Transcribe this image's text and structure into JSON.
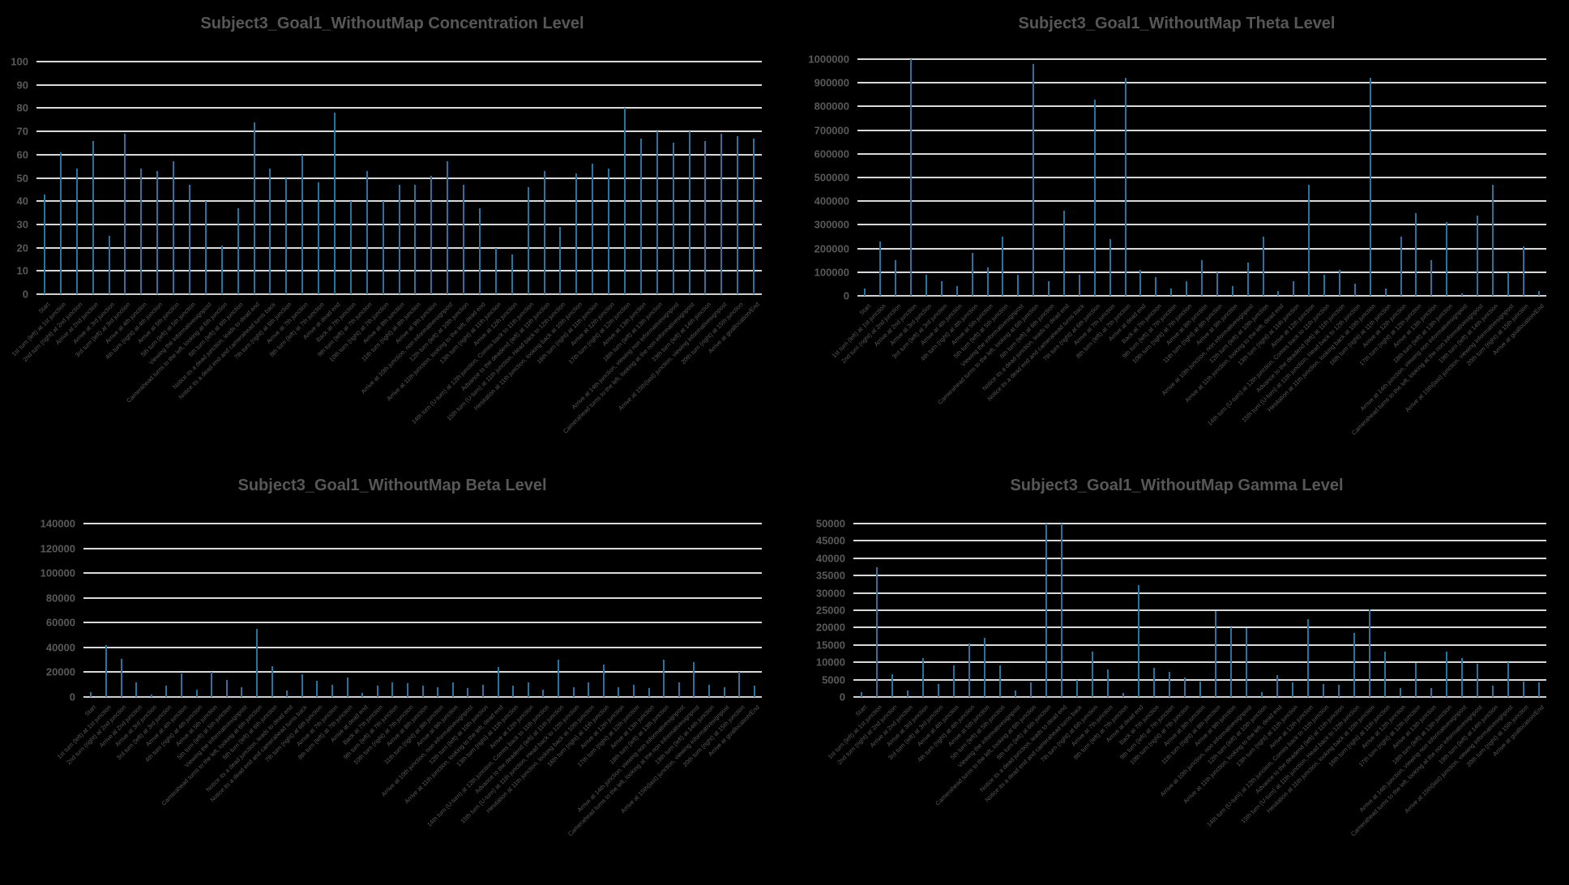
{
  "page": {
    "background_color": "#000000",
    "title_color": "#575757",
    "axis_label_color": "#595959",
    "gridline_color": "#d9d9d9",
    "bar_color": "#2873a0"
  },
  "categories": [
    "Start",
    "1st turn (left) at 1st junction",
    "2nd turn (right) at 2nd junction",
    "Arrive at 2nd junction",
    "Arrive at 3rd junction",
    "3rd turn (left) at 3rd junction",
    "Arrive at 4th junction",
    "4th turn (right) at 4th junction",
    "Arrive at 5th junction",
    "5th turn (left) at 5th junction",
    "Viewing the informativesignpost",
    "Camerahead turns to the left, looking at 6th junction",
    "6th turn (left) at 6th junction",
    "Notice its a dead junction, leads to dead end",
    "Notice its a dead end and camerahead turns back",
    "7th turn (right) at 6th junction",
    "Arrive at 7th junction",
    "8th turn (left) at 7th junction",
    "Arrive at dead end",
    "Back at 7th junction",
    "9th turn (left) at 7th junction",
    "10th turn (right) at 7th junction",
    "Arrive at 8th junction",
    "11th turn (right) at 8th junction",
    "Arrive at 9th junction",
    "Arrive at 10th junction, non informativesignpost",
    "12th turn (left) at 10th junction",
    "Arrive at 11th junction, looking to the left, dead end",
    "13th turn (right) at 11th junction",
    "Arrive at 12th junction",
    "14th turn (U-turn) at 12th junction, Comes back to 11th junction",
    "Advance to the deadend (left) at 11th junction",
    "15th turn (U-turn) at 11th junction, Head back to 12th junction",
    "Hesitation at 11th junction, looking back at 10th junction",
    "16th turn (right) at 11th junction",
    "Arrive at 12th junction",
    "17th turn (right) at 12th junction",
    "Arrive at 13th junction",
    "18th turn (left) at 13th junction",
    "Arrive at 14th junction, viewing non informativesignpost",
    "Camerahead turns to the left, looking at the non informativesignpost",
    "19th turn (left) at 14th junction",
    "Arrive at 15th(last) junction, viewing informativesignpost",
    "20th turn (right) at 15th junction",
    "Arrive at goallocation/End"
  ],
  "chart_data": [
    {
      "type": "bar",
      "title": "Subject3_Goal1_WithoutMap Concentration Level",
      "xlabel": "",
      "ylabel": "",
      "ylim": [
        0,
        100
      ],
      "ytick_step": 10,
      "grid": true,
      "legend_position": "none",
      "values": [
        43,
        61,
        54,
        66,
        25,
        69,
        54,
        53,
        57,
        47,
        40,
        21,
        37,
        74,
        54,
        50,
        60,
        48,
        78,
        40,
        53,
        40,
        47,
        47,
        51,
        57,
        47,
        37,
        20,
        17,
        46,
        53,
        29,
        52,
        56,
        54,
        80,
        67,
        70,
        65,
        70,
        66,
        69,
        68,
        67
      ]
    },
    {
      "type": "bar",
      "title": "Subject3_Goal1_WithoutMap Theta Level",
      "xlabel": "",
      "ylabel": "",
      "ylim": [
        0,
        1000000
      ],
      "ytick_step": 100000,
      "grid": true,
      "legend_position": "none",
      "values": [
        30000,
        230000,
        150000,
        1000000,
        90000,
        60000,
        40000,
        180000,
        120000,
        250000,
        90000,
        980000,
        60000,
        360000,
        90000,
        830000,
        240000,
        920000,
        110000,
        80000,
        30000,
        60000,
        150000,
        100000,
        40000,
        140000,
        250000,
        20000,
        60000,
        470000,
        90000,
        110000,
        50000,
        920000,
        30000,
        250000,
        350000,
        150000,
        310000,
        10000,
        340000,
        470000,
        100000,
        210000,
        20000
      ]
    },
    {
      "type": "bar",
      "title": "Subject3_Goal1_WithoutMap Beta Level",
      "xlabel": "",
      "ylabel": "",
      "ylim": [
        0,
        140000
      ],
      "ytick_step": 20000,
      "grid": true,
      "legend_position": "none",
      "values": [
        4000,
        42000,
        31000,
        12000,
        2000,
        9000,
        19000,
        6000,
        20000,
        14000,
        8000,
        55000,
        25000,
        5000,
        18000,
        13000,
        10000,
        16000,
        3000,
        9000,
        12000,
        11000,
        9000,
        8000,
        12000,
        7000,
        10000,
        24000,
        9000,
        12000,
        6000,
        30000,
        8000,
        12000,
        26000,
        8000,
        10000,
        7000,
        30000,
        12000,
        28000,
        10000,
        8000,
        20000,
        9000
      ]
    },
    {
      "type": "bar",
      "title": "Subject3_Goal1_WithoutMap Gamma Level",
      "xlabel": "",
      "ylabel": "",
      "ylim": [
        0,
        50000
      ],
      "ytick_step": 5000,
      "grid": true,
      "legend_position": "none",
      "values": [
        1500,
        37500,
        6500,
        1800,
        11200,
        3800,
        9000,
        15500,
        17000,
        9200,
        1800,
        4200,
        50000,
        50000,
        4800,
        13200,
        8000,
        1200,
        32300,
        8500,
        7200,
        5500,
        4500,
        24800,
        20000,
        19800,
        1500,
        6300,
        4200,
        22500,
        3800,
        3500,
        18500,
        25300,
        13200,
        2500,
        9800,
        2500,
        13200,
        11200,
        9500,
        3300,
        10000,
        4500,
        4200
      ]
    }
  ]
}
